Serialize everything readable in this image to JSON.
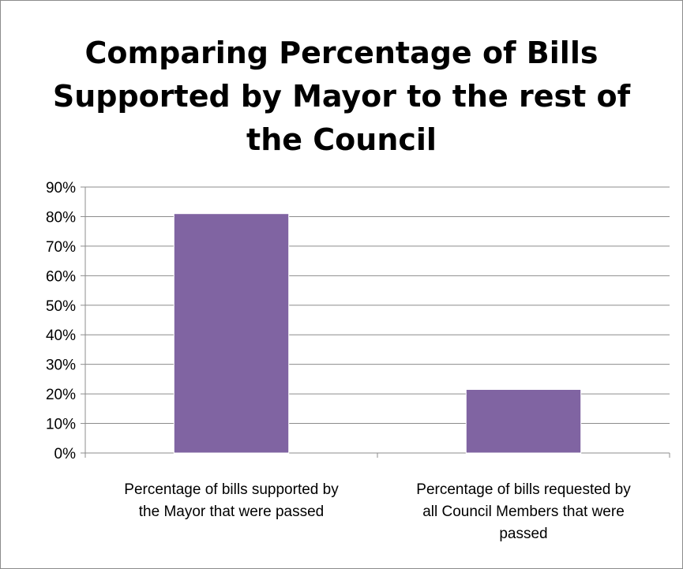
{
  "chart_data": {
    "type": "bar",
    "title_lines": [
      "Comparing Percentage of Bills",
      "Supported by Mayor to the rest of",
      "the Council"
    ],
    "categories": [
      [
        "Percentage of bills supported by",
        "the Mayor that were passed"
      ],
      [
        "Percentage of bills requested by",
        "all Council Members that were",
        "passed"
      ]
    ],
    "values": [
      81,
      21.5
    ],
    "ylim": [
      0,
      90
    ],
    "yticks": [
      "0%",
      "10%",
      "20%",
      "30%",
      "40%",
      "50%",
      "60%",
      "70%",
      "80%",
      "90%"
    ],
    "tick_step": 10,
    "grid": true,
    "bar_color": "#8064a2",
    "xlabel": "",
    "ylabel": ""
  }
}
